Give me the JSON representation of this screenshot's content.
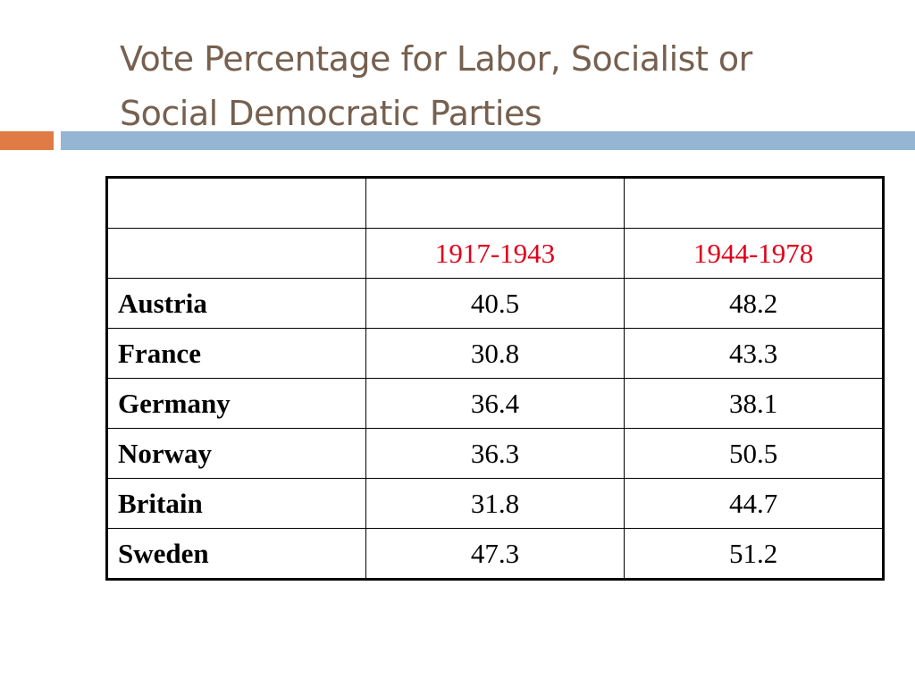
{
  "slide": {
    "title_line1": "Vote Percentage for Labor, Socialist or",
    "title_line2": "Social Democratic Parties"
  },
  "colors": {
    "title": "#76604f",
    "accent_bar": "#e07b45",
    "main_bar": "#94b6d2",
    "period_header": "#e0001b"
  },
  "table": {
    "header_periods": [
      "1917-1943",
      "1944-1978"
    ],
    "rows": [
      {
        "country": "Austria",
        "p1": "40.5",
        "p2": "48.2"
      },
      {
        "country": "France",
        "p1": "30.8",
        "p2": "43.3"
      },
      {
        "country": "Germany",
        "p1": "36.4",
        "p2": "38.1"
      },
      {
        "country": "Norway",
        "p1": "36.3",
        "p2": "50.5"
      },
      {
        "country": "Britain",
        "p1": "31.8",
        "p2": "44.7"
      },
      {
        "country": "Sweden",
        "p1": "47.3",
        "p2": "51.2"
      }
    ]
  }
}
